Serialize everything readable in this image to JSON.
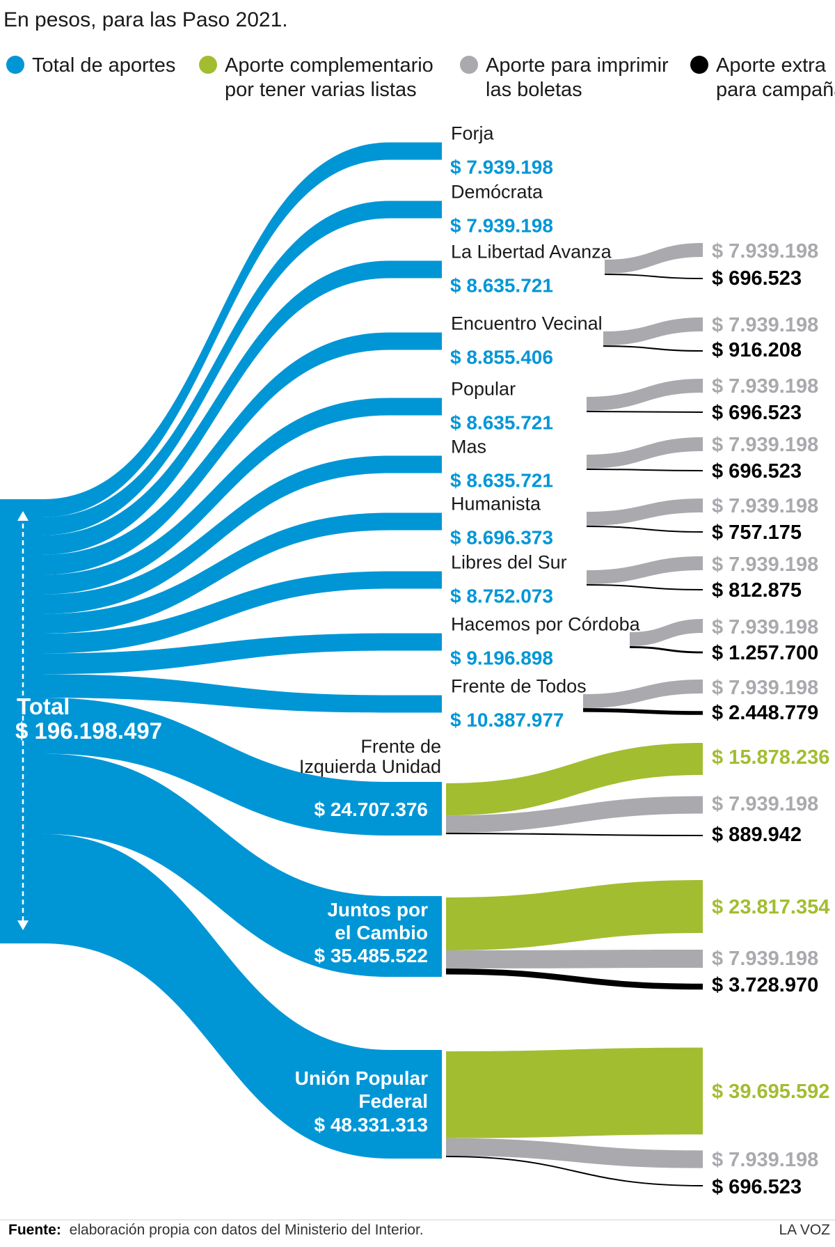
{
  "subtitle": "En pesos, para las Paso 2021.",
  "colors": {
    "total": "#0096d6",
    "complementario": "#a2bd30",
    "imprimir": "#a9a9ae",
    "extra": "#000000"
  },
  "legend": [
    {
      "key": "total",
      "lines": [
        "Total de aportes"
      ]
    },
    {
      "key": "complementario",
      "lines": [
        "Aporte complementario",
        "por tener varias listas"
      ]
    },
    {
      "key": "imprimir",
      "lines": [
        "Aporte para imprimir",
        "las boletas"
      ]
    },
    {
      "key": "extra",
      "lines": [
        "Aporte extra",
        "para campaña"
      ]
    }
  ],
  "footer": {
    "source_bold": "Fuente:",
    "source_text": "elaboración propia con datos del Ministerio del Interior.",
    "brand": "LA VOZ"
  },
  "chart_data": {
    "type": "sankey",
    "units": "pesos",
    "source": {
      "lines": [
        "Total",
        "$ 196.198.497"
      ],
      "value": 196198497
    },
    "targets": [
      {
        "lines": [
          "Forja"
        ],
        "total": 7939198,
        "total_label": "$ 7.939.198",
        "breakdown": []
      },
      {
        "lines": [
          "Demócrata"
        ],
        "total": 7939198,
        "total_label": "$ 7.939.198",
        "breakdown": []
      },
      {
        "lines": [
          "La Libertad Avanza"
        ],
        "total": 8635721,
        "total_label": "$ 8.635.721",
        "breakdown": [
          {
            "type": "imprimir",
            "value": 7939198,
            "label": "$ 7.939.198"
          },
          {
            "type": "extra",
            "value": 696523,
            "label": "$ 696.523"
          }
        ]
      },
      {
        "lines": [
          "Encuentro Vecinal"
        ],
        "total": 8855406,
        "total_label": "$ 8.855.406",
        "breakdown": [
          {
            "type": "imprimir",
            "value": 7939198,
            "label": "$ 7.939.198"
          },
          {
            "type": "extra",
            "value": 916208,
            "label": "$ 916.208"
          }
        ]
      },
      {
        "lines": [
          "Popular"
        ],
        "total": 8635721,
        "total_label": "$ 8.635.721",
        "breakdown": [
          {
            "type": "imprimir",
            "value": 7939198,
            "label": "$ 7.939.198"
          },
          {
            "type": "extra",
            "value": 696523,
            "label": "$ 696.523"
          }
        ]
      },
      {
        "lines": [
          "Mas"
        ],
        "total": 8635721,
        "total_label": "$ 8.635.721",
        "breakdown": [
          {
            "type": "imprimir",
            "value": 7939198,
            "label": "$ 7.939.198"
          },
          {
            "type": "extra",
            "value": 696523,
            "label": "$ 696.523"
          }
        ]
      },
      {
        "lines": [
          "Humanista"
        ],
        "total": 8696373,
        "total_label": "$ 8.696.373",
        "breakdown": [
          {
            "type": "imprimir",
            "value": 7939198,
            "label": "$ 7.939.198"
          },
          {
            "type": "extra",
            "value": 757175,
            "label": "$ 757.175"
          }
        ]
      },
      {
        "lines": [
          "Libres del Sur"
        ],
        "total": 8752073,
        "total_label": "$ 8.752.073",
        "breakdown": [
          {
            "type": "imprimir",
            "value": 7939198,
            "label": "$ 7.939.198"
          },
          {
            "type": "extra",
            "value": 812875,
            "label": "$ 812.875"
          }
        ]
      },
      {
        "lines": [
          "Hacemos por Córdoba"
        ],
        "total": 9196898,
        "total_label": "$ 9.196.898",
        "breakdown": [
          {
            "type": "imprimir",
            "value": 7939198,
            "label": "$ 7.939.198"
          },
          {
            "type": "extra",
            "value": 1257700,
            "label": "$ 1.257.700"
          }
        ]
      },
      {
        "lines": [
          "Frente de Todos"
        ],
        "total": 10387977,
        "total_label": "$ 10.387.977",
        "breakdown": [
          {
            "type": "imprimir",
            "value": 7939198,
            "label": "$ 7.939.198"
          },
          {
            "type": "extra",
            "value": 2448779,
            "label": "$ 2.448.779"
          }
        ]
      },
      {
        "lines": [
          "Frente de",
          "Izquierda Unidad"
        ],
        "total": 24707376,
        "total_label": "$ 24.707.376",
        "breakdown": [
          {
            "type": "complementario",
            "value": 15878236,
            "label": "$ 15.878.236"
          },
          {
            "type": "imprimir",
            "value": 7939198,
            "label": "$ 7.939.198"
          },
          {
            "type": "extra",
            "value": 889942,
            "label": "$ 889.942"
          }
        ]
      },
      {
        "lines": [
          "Juntos por",
          "el Cambio"
        ],
        "total": 35485522,
        "total_label": "$ 35.485.522",
        "breakdown": [
          {
            "type": "complementario",
            "value": 23817354,
            "label": "$ 23.817.354"
          },
          {
            "type": "imprimir",
            "value": 7939198,
            "label": "$ 7.939.198"
          },
          {
            "type": "extra",
            "value": 3728970,
            "label": "$ 3.728.970"
          }
        ]
      },
      {
        "lines": [
          "Unión Popular",
          "Federal"
        ],
        "total": 48331313,
        "total_label": "$ 48.331.313",
        "breakdown": [
          {
            "type": "complementario",
            "value": 39695592,
            "label": "$ 39.695.592"
          },
          {
            "type": "imprimir",
            "value": 7939198,
            "label": "$ 7.939.198"
          },
          {
            "type": "extra",
            "value": 696523,
            "label": "$ 696.523"
          }
        ]
      }
    ]
  }
}
